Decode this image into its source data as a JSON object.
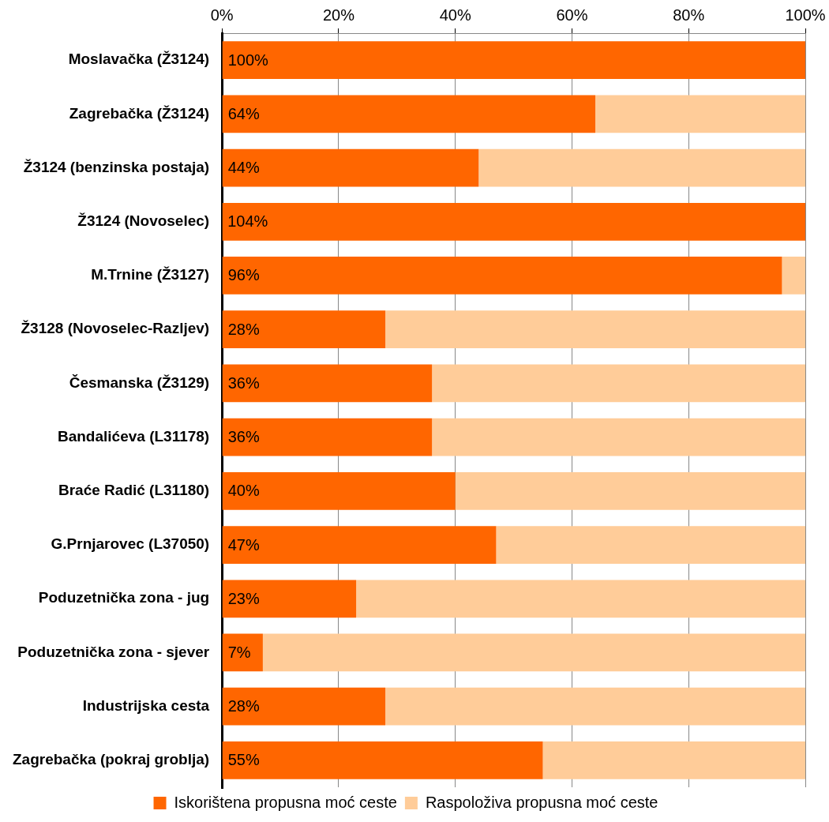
{
  "chart_data": {
    "type": "bar",
    "orientation": "horizontal",
    "stacked": true,
    "categories": [
      "Moslavačka (Ž3124)",
      "Zagrebačka (Ž3124)",
      "Ž3124 (benzinska postaja)",
      "Ž3124 (Novoselec)",
      "M.Trnine (Ž3127)",
      "Ž3128 (Novoselec-Razljev)",
      "Česmanska (Ž3129)",
      "Bandalićeva (L31178)",
      "Braće Radić (L31180)",
      "G.Prnjarovec (L37050)",
      "Poduzetnička zona - jug",
      "Poduzetnička zona - sjever",
      "Industrijska cesta",
      "Zagrebačka (pokraj groblja)"
    ],
    "series": [
      {
        "name": "Iskorištena propusna moć ceste",
        "color": "#ff6600",
        "values": [
          100,
          64,
          44,
          100,
          96,
          28,
          36,
          36,
          40,
          47,
          23,
          7,
          28,
          55
        ],
        "value_labels": [
          "100%",
          "64%",
          "44%",
          null,
          "96%",
          "28%",
          "36%",
          "36%",
          "40%",
          "47%",
          "23%",
          "7%",
          "28%",
          "55%"
        ]
      },
      {
        "name": "Raspoloživa propusna moć ceste",
        "color": "#ffcc99",
        "values": [
          0,
          36,
          56,
          0,
          4,
          72,
          64,
          64,
          60,
          53,
          77,
          93,
          72,
          45
        ]
      }
    ],
    "xlim": [
      0,
      100
    ],
    "xticks": [
      {
        "value": 0,
        "label": "0%"
      },
      {
        "value": 20,
        "label": "20%"
      },
      {
        "value": 40,
        "label": "40%"
      },
      {
        "value": 60,
        "label": "60%"
      },
      {
        "value": 80,
        "label": "80%"
      },
      {
        "value": 100,
        "label": "100%"
      }
    ],
    "annotations": [
      {
        "text": "104%",
        "x": 0,
        "y": "Ž3124 (Novoselec)"
      }
    ],
    "grid": "x",
    "legend": "bottom"
  }
}
